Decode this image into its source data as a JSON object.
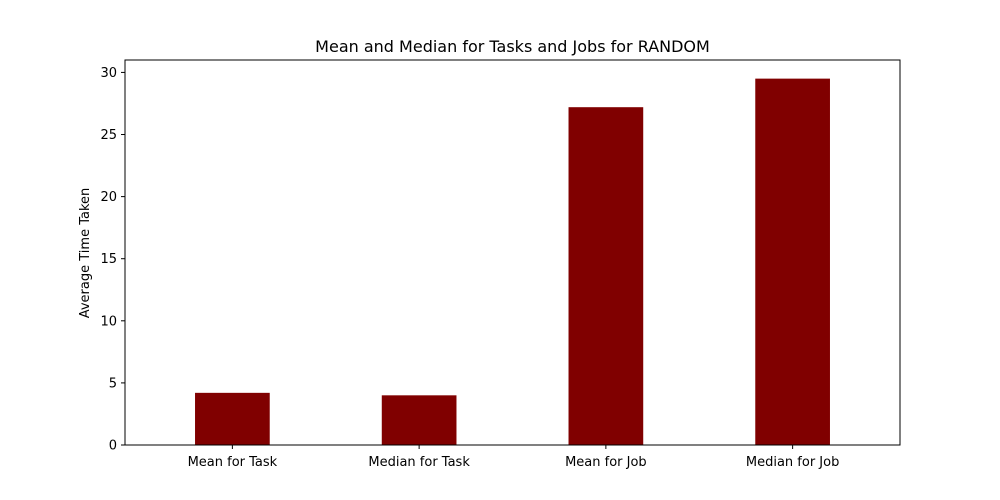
{
  "chart_data": {
    "type": "bar",
    "title": "Mean and Median for Tasks and Jobs for RANDOM",
    "xlabel": "",
    "ylabel": "Average Time Taken",
    "categories": [
      "Mean for Task",
      "Median for Task",
      "Mean for Job",
      "Median for Job"
    ],
    "values": [
      4.2,
      4.0,
      27.2,
      29.5
    ],
    "ylim": [
      0,
      31.0
    ],
    "yticks": [
      0,
      5,
      10,
      15,
      20,
      25,
      30
    ],
    "bar_color": "#800000",
    "grid": false,
    "legend": "none"
  }
}
